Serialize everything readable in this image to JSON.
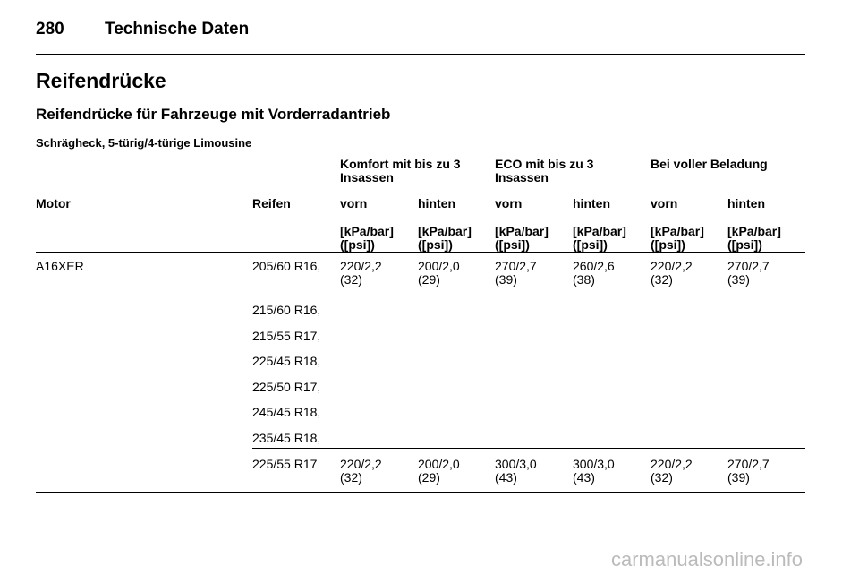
{
  "header": {
    "page_number": "280",
    "title": "Technische Daten"
  },
  "heading": "Reifendrücke",
  "subheading": "Reifendrücke für Fahrzeuge mit Vorderradantrieb",
  "section": "Schrägheck, 5-türig/4-türige Limousine",
  "table": {
    "group_headers": [
      "Komfort mit bis zu 3\nInsassen",
      "ECO mit bis zu 3\nInsassen",
      "Bei voller Beladung"
    ],
    "columns": [
      "Motor",
      "Reifen",
      "vorn",
      "hinten",
      "vorn",
      "hinten",
      "vorn",
      "hinten"
    ],
    "units": [
      "[kPa/bar]\n([psi])",
      "[kPa/bar]\n([psi])",
      "[kPa/bar]\n([psi])",
      "[kPa/bar]\n([psi])",
      "[kPa/bar]\n([psi])",
      "[kPa/bar]\n([psi])"
    ],
    "rows": [
      {
        "motor": "A16XER",
        "tyres": [
          "205/60 R16,",
          "215/60 R16,",
          "215/55 R17,",
          "225/45 R18,",
          "225/50 R17,",
          "245/45 R18,",
          "235/45 R18,"
        ],
        "values": [
          "220/2,2\n(32)",
          "200/2,0\n(29)",
          "270/2,7\n(39)",
          "260/2,6\n(38)",
          "220/2,2\n(32)",
          "270/2,7\n(39)"
        ]
      },
      {
        "tyres": [
          "225/55 R17"
        ],
        "values": [
          "220/2,2\n(32)",
          "200/2,0\n(29)",
          "300/3,0\n(43)",
          "300/3,0\n(43)",
          "220/2,2\n(32)",
          "270/2,7\n(39)"
        ]
      }
    ]
  },
  "watermark": "carmanualsonline.info"
}
